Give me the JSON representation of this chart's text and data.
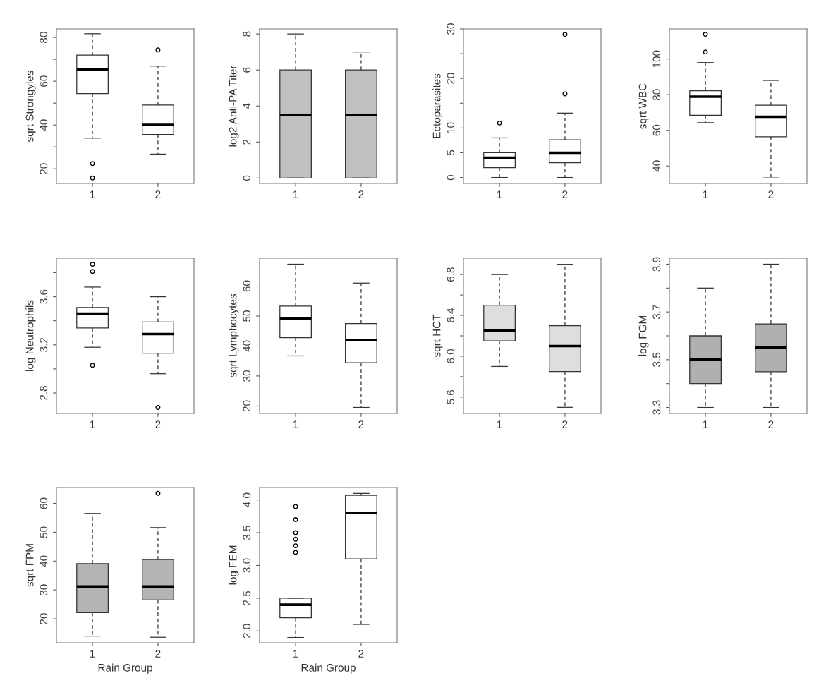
{
  "chart_data": [
    {
      "type": "box",
      "categories": [
        "1",
        "2"
      ],
      "ylabel": "sqrt Strongyles",
      "ylim": [
        13.3,
        83.9
      ],
      "yticks": [
        20,
        {
          "value": 30,
          "label": null
        },
        40,
        {
          "value": 50,
          "label": null
        },
        60,
        {
          "value": 70,
          "label": null
        },
        80
      ],
      "grid": false,
      "series": [
        {
          "color": "#ffffff",
          "boxes": [
            {
              "low": 34.0,
              "q1": 54.4,
              "median": 65.4,
              "q3": 71.9,
              "high": 81.7,
              "outliers": [
                22.4,
                15.8
              ]
            },
            {
              "low": 26.7,
              "q1": 35.7,
              "median": 40.0,
              "q3": 49.1,
              "high": 66.9,
              "outliers": [
                74.3
              ]
            }
          ]
        }
      ]
    },
    {
      "type": "box",
      "categories": [
        "1",
        "2"
      ],
      "ylabel": "log2 Anti-PA Titer",
      "ylim": [
        -0.3,
        8.28
      ],
      "yticks": [
        0,
        2,
        4,
        6,
        8
      ],
      "grid": false,
      "series": [
        {
          "color": "#c0c0c0",
          "boxes": [
            {
              "low": 0,
              "q1": 0,
              "median": 3.5,
              "q3": 6,
              "high": 8
            },
            {
              "low": 0,
              "q1": 0,
              "median": 3.5,
              "q3": 6,
              "high": 7
            }
          ]
        }
      ]
    },
    {
      "type": "box",
      "categories": [
        "1",
        "2"
      ],
      "ylabel": "Ectoparasites",
      "ylim": [
        -1.2,
        30
      ],
      "yticks": [
        0,
        5,
        10,
        {
          "value": 15,
          "label": null
        },
        20,
        {
          "value": 25,
          "label": null
        },
        30
      ],
      "grid": false,
      "series": [
        {
          "color": "#ffffff",
          "boxes": [
            {
              "low": 0,
              "q1": 2.0,
              "median": 4.0,
              "q3": 5.0,
              "high": 8.0,
              "outliers": [
                11.0
              ]
            },
            {
              "low": 0,
              "q1": 3.0,
              "median": 5.0,
              "q3": 7.6,
              "high": 13.0,
              "outliers": [
                16.9,
                28.9
              ]
            }
          ]
        }
      ]
    },
    {
      "type": "box",
      "categories": [
        "1",
        "2"
      ],
      "ylabel": "sqrt WBC",
      "ylim": [
        30.2,
        116.9
      ],
      "yticks": [
        40,
        60,
        80,
        100
      ],
      "grid": false,
      "series": [
        {
          "color": "#ffffff",
          "boxes": [
            {
              "low": 64.3,
              "q1": 68.5,
              "median": 78.9,
              "q3": 82.2,
              "high": 98.0,
              "outliers": [
                103.9,
                113.9
              ]
            },
            {
              "low": 33.3,
              "q1": 56.4,
              "median": 67.6,
              "q3": 74.1,
              "high": 88.0
            }
          ]
        }
      ]
    },
    {
      "type": "box",
      "categories": [
        "1",
        "2"
      ],
      "ylabel": "log Neutrophils",
      "ylim": [
        2.63,
        3.92
      ],
      "yticks": [
        2.8,
        {
          "value": 3.0,
          "label": null
        },
        3.2,
        {
          "value": 3.4,
          "label": null
        },
        3.6,
        {
          "value": 3.8,
          "label": null
        }
      ],
      "grid": false,
      "series": [
        {
          "color": "#ffffff",
          "boxes": [
            {
              "low": 3.18,
              "q1": 3.34,
              "median": 3.46,
              "q3": 3.51,
              "high": 3.68,
              "outliers": [
                3.87,
                3.81,
                3.03
              ]
            },
            {
              "low": 2.96,
              "q1": 3.13,
              "median": 3.29,
              "q3": 3.39,
              "high": 3.6,
              "outliers": [
                2.68
              ]
            }
          ]
        }
      ]
    },
    {
      "type": "box",
      "categories": [
        "1",
        "2"
      ],
      "ylabel": "sqrt Lymphocytes",
      "ylim": [
        17.5,
        69.3
      ],
      "yticks": [
        20,
        30,
        40,
        50,
        60
      ],
      "grid": false,
      "series": [
        {
          "color": "#ffffff",
          "boxes": [
            {
              "low": 36.7,
              "q1": 42.8,
              "median": 49.1,
              "q3": 53.3,
              "high": 67.3
            },
            {
              "low": 19.5,
              "q1": 34.4,
              "median": 42.0,
              "q3": 47.5,
              "high": 61.0
            }
          ]
        }
      ]
    },
    {
      "type": "box",
      "categories": [
        "1",
        "2"
      ],
      "ylabel": "sqrt HCT",
      "ylim": [
        5.44,
        6.96
      ],
      "yticks": [
        5.6,
        {
          "value": 5.8,
          "label": null
        },
        {
          "value": 6.0,
          "label": "6.0"
        },
        {
          "value": 6.2,
          "label": null
        },
        6.4,
        {
          "value": 6.6,
          "label": null
        },
        6.8
      ],
      "grid": false,
      "series": [
        {
          "color": "#dedede",
          "boxes": [
            {
              "low": 5.9,
              "q1": 6.15,
              "median": 6.25,
              "q3": 6.5,
              "high": 6.8
            },
            {
              "low": 5.5,
              "q1": 5.85,
              "median": 6.1,
              "q3": 6.3,
              "high": 6.9
            }
          ]
        }
      ]
    },
    {
      "type": "box",
      "categories": [
        "1",
        "2"
      ],
      "ylabel": "log FGM",
      "ylim": [
        3.275,
        3.925
      ],
      "yticks": [
        3.3,
        {
          "value": 3.4,
          "label": null
        },
        3.5,
        {
          "value": 3.6,
          "label": null
        },
        3.7,
        {
          "value": 3.8,
          "label": null
        },
        3.9
      ],
      "grid": false,
      "series": [
        {
          "color": "#b0b0b0",
          "boxes": [
            {
              "low": 3.3,
              "q1": 3.4,
              "median": 3.5,
              "q3": 3.6,
              "high": 3.8
            },
            {
              "low": 3.3,
              "q1": 3.45,
              "median": 3.55,
              "q3": 3.65,
              "high": 3.9
            }
          ]
        }
      ]
    },
    {
      "type": "box",
      "categories": [
        "1",
        "2"
      ],
      "ylabel": "sqrt FPM",
      "xlabel": "Rain Group",
      "ylim": [
        11.7,
        65.5
      ],
      "yticks": [
        20,
        30,
        40,
        50,
        60
      ],
      "grid": false,
      "series": [
        {
          "color": "#b4b4b4",
          "boxes": [
            {
              "low": 14.0,
              "q1": 22.1,
              "median": 31.2,
              "q3": 39.1,
              "high": 56.5
            },
            {
              "low": 13.6,
              "q1": 26.5,
              "median": 31.2,
              "q3": 40.5,
              "high": 51.6,
              "outliers": [
                63.5
              ]
            }
          ]
        }
      ]
    },
    {
      "type": "box",
      "categories": [
        "1",
        "2"
      ],
      "ylabel": "log FEM",
      "xlabel": "Rain Group",
      "ylim": [
        1.82,
        4.19
      ],
      "yticks": [
        {
          "value": 2.0,
          "label": "2.0"
        },
        2.5,
        {
          "value": 3.0,
          "label": "3.0"
        },
        3.5,
        {
          "value": 4.0,
          "label": "4.0"
        }
      ],
      "grid": false,
      "series": [
        {
          "color": "#ffffff",
          "boxes": [
            {
              "low": 1.9,
              "q1": 2.2,
              "median": 2.4,
              "q3": 2.5,
              "high": 2.5,
              "outliers": [
                3.2,
                3.3,
                3.4,
                3.5,
                3.7,
                3.9
              ]
            },
            {
              "low": 2.1,
              "q1": 3.1,
              "median": 3.8,
              "q3": 4.07,
              "high": 4.1
            }
          ]
        }
      ]
    }
  ]
}
